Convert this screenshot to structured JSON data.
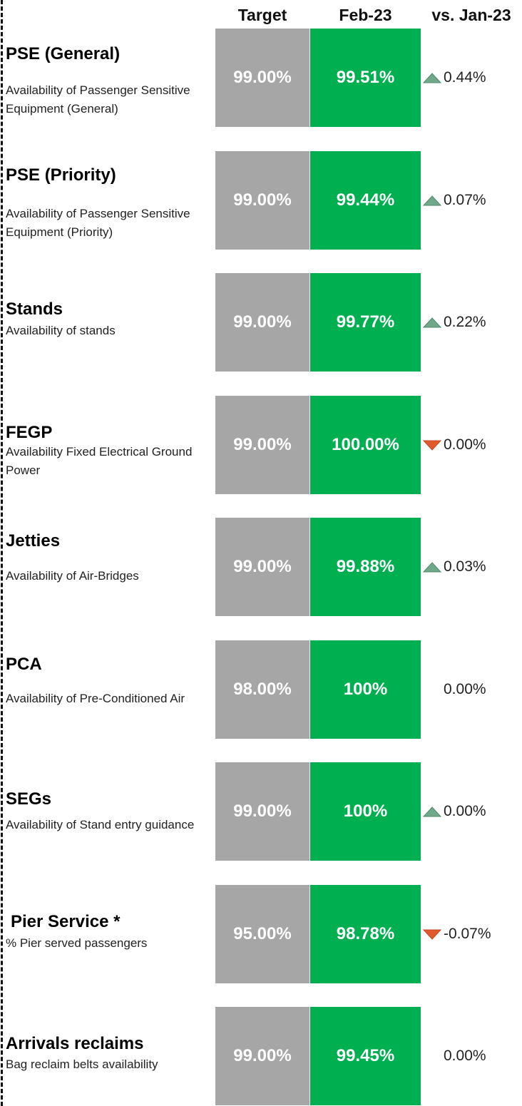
{
  "header": {
    "columns": [
      "Target",
      "Feb-23",
      "vs. Jan-23"
    ]
  },
  "rows": [
    {
      "title": "PSE (General)",
      "description": "Availability of Passenger Sensitive Equipment (General)",
      "target": "99.00%",
      "actual": "99.51%",
      "change": "0.44%",
      "trend": "up"
    },
    {
      "title": "PSE (Priority)",
      "description": "Availability of Passenger Sensitive Equipment (Priority)",
      "target": "99.00%",
      "actual": "99.44%",
      "change": "0.07%",
      "trend": "up"
    },
    {
      "title": "Stands",
      "description": "Availability of stands",
      "target": "99.00%",
      "actual": "99.77%",
      "change": "0.22%",
      "trend": "up"
    },
    {
      "title": "FEGP",
      "description": "Availability Fixed Electrical Ground Power",
      "target": "99.00%",
      "actual": "100.00%",
      "change": "0.00%",
      "trend": "down"
    },
    {
      "title": "Jetties",
      "description": "Availability of Air-Bridges",
      "target": "99.00%",
      "actual": "99.88%",
      "change": "0.03%",
      "trend": "up"
    },
    {
      "title": "PCA",
      "description": "Availability of Pre-Conditioned Air",
      "target": "98.00%",
      "actual": "100%",
      "change": "0.00%"
    },
    {
      "title": "SEGs",
      "description": "Availability of Stand entry guidance",
      "target": "99.00%",
      "actual": "100%",
      "change": "0.00%",
      "trend": "up"
    },
    {
      "title": "Pier Service *",
      "description": "% Pier served passengers",
      "target": "95.00%",
      "actual": "98.78%",
      "change": "-0.07%",
      "trend": "down"
    },
    {
      "title": "Arrivals reclaims",
      "description": "Bag reclaim belts availability",
      "target": "99.00%",
      "actual": "99.45%",
      "change": "0.00%"
    }
  ]
}
